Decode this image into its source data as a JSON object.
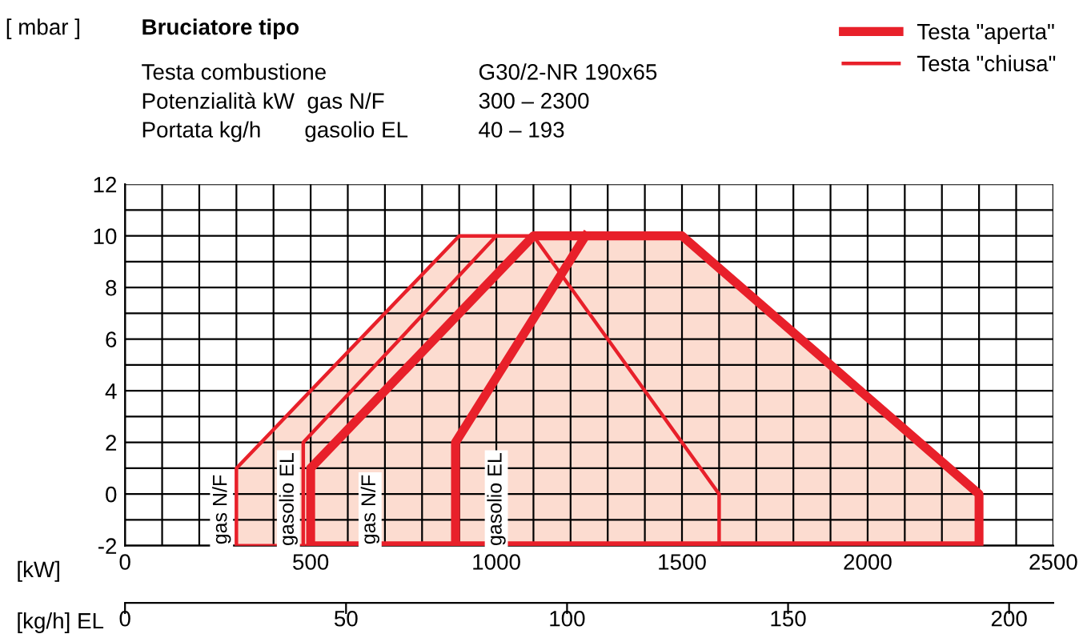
{
  "chart_data": {
    "type": "area",
    "xlabel": "[kW]",
    "x2label": "[kg/h] EL",
    "annotations": [
      "[ mbar ]",
      "Bruciatore tipo",
      "Testa combustione",
      "Potenzialità kW  gas N/F",
      "Portata kg/h       gasolio EL",
      "G30/2-NR 190x65",
      "300 – 2300",
      "40 – 193",
      "gas N/F",
      "gasolio EL",
      "gas N/F",
      "gasolio EL"
    ],
    "series": [
      {
        "name": "Testa \"chiusa\"",
        "color": "#e8202a",
        "x": [
          300,
          300,
          900,
          1100,
          1600,
          1600,
          300
        ],
        "values": [
          -2,
          1,
          10,
          10,
          0,
          -2,
          -2
        ]
      },
      {
        "name": "Testa \"aperta\"",
        "color": "#e8202a",
        "x": [
          500,
          500,
          1100,
          1500,
          2300,
          2300,
          500
        ],
        "values": [
          -2,
          1,
          10,
          10,
          0,
          -2,
          -2
        ]
      },
      {
        "type": "line",
        "color": "#e8202a",
        "x": [
          480,
          480,
          1000
        ],
        "values": [
          -2,
          2,
          10
        ]
      },
      {
        "type": "line",
        "color": "#e8202a",
        "x": [
          890,
          890,
          1240
        ],
        "values": [
          -2,
          2,
          10
        ]
      }
    ],
    "xlim": [
      0,
      2500
    ],
    "xticks": [
      0,
      {
        "value": 100,
        "label": null
      },
      {
        "value": 200,
        "label": null
      },
      {
        "value": 300,
        "label": null
      },
      {
        "value": 400,
        "label": null
      },
      500,
      {
        "value": 600,
        "label": null
      },
      {
        "value": 700,
        "label": null
      },
      {
        "value": 800,
        "label": null
      },
      {
        "value": 900,
        "label": null
      },
      1000,
      {
        "value": 1100,
        "label": null
      },
      {
        "value": 1200,
        "label": null
      },
      {
        "value": 1300,
        "label": null
      },
      {
        "value": 1400,
        "label": null
      },
      1500,
      {
        "value": 1600,
        "label": null
      },
      {
        "value": 1700,
        "label": null
      },
      {
        "value": 1800,
        "label": null
      },
      {
        "value": 1900,
        "label": null
      },
      2000,
      {
        "value": 2100,
        "label": null
      },
      {
        "value": 2200,
        "label": null
      },
      {
        "value": 2300,
        "label": null
      },
      {
        "value": 2400,
        "label": null
      },
      2500
    ],
    "ylim": [
      -2,
      12
    ],
    "yticks": [
      -2,
      {
        "value": -1,
        "label": null
      },
      0,
      {
        "value": 1,
        "label": null
      },
      2,
      {
        "value": 3,
        "label": null
      },
      4,
      {
        "value": 5,
        "label": null
      },
      6,
      {
        "value": 7,
        "label": null
      },
      8,
      {
        "value": 9,
        "label": null
      },
      10,
      {
        "value": 11,
        "label": null
      },
      12
    ],
    "x2lim": [
      0,
      210
    ],
    "x2ticks": [
      0,
      50,
      100,
      150,
      200
    ],
    "grid": true,
    "legend": "top right"
  }
}
